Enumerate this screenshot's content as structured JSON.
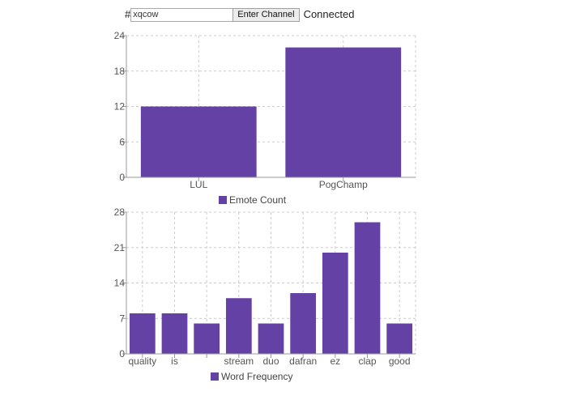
{
  "controls": {
    "hash_prefix": "#",
    "channel_value": "xqcow",
    "enter_button_label": "Enter Channel",
    "status_text": "Connected"
  },
  "colors": {
    "bar": "#6441a5",
    "grid": "#cccccc",
    "axis": "#999999"
  },
  "chart_data": [
    {
      "type": "bar",
      "categories": [
        "LUL",
        "PogChamp"
      ],
      "series": [
        {
          "name": "Emote Count",
          "values": [
            12,
            22
          ]
        }
      ],
      "ylim": [
        0,
        24
      ],
      "yticks": [
        0,
        6,
        12,
        18,
        24
      ],
      "legend_position": "bottom",
      "grid": true
    },
    {
      "type": "bar",
      "categories": [
        "quality",
        "is",
        "",
        "stream",
        "duo",
        "dafran",
        "ez",
        "clap",
        "good"
      ],
      "series": [
        {
          "name": "Word Frequency",
          "values": [
            8,
            8,
            6,
            11,
            6,
            12,
            20,
            26,
            6
          ]
        }
      ],
      "ylim": [
        0,
        28
      ],
      "yticks": [
        0,
        7,
        14,
        21,
        28
      ],
      "legend_position": "bottom",
      "grid": true
    }
  ]
}
